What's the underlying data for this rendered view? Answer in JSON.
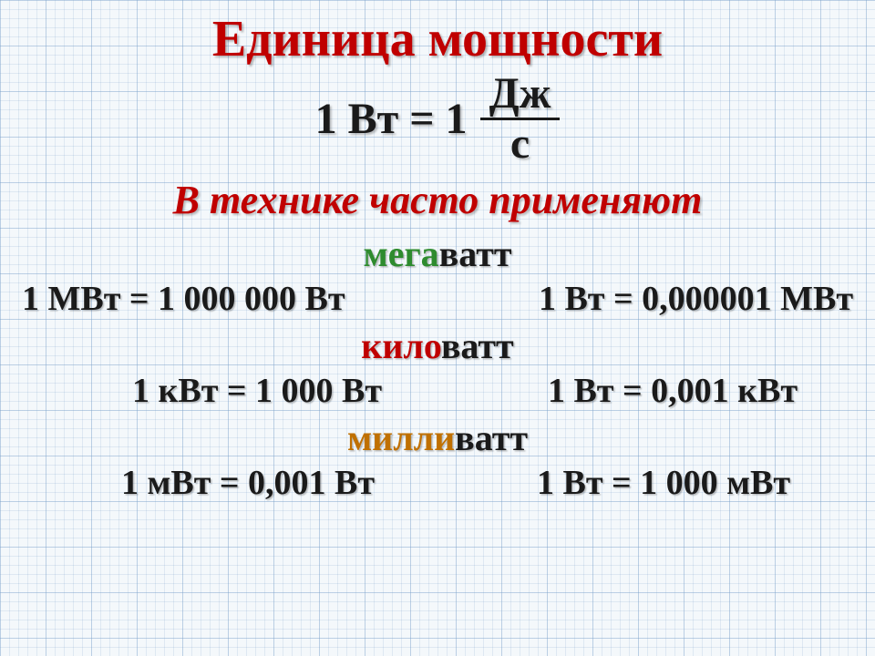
{
  "colors": {
    "title": "#c00000",
    "formula": "#1a1a1a",
    "subtitle": "#c00000",
    "mega_prefix": "#2e8b2e",
    "kilo_prefix": "#c00000",
    "milli_prefix": "#c07000",
    "body_text": "#1a1a1a"
  },
  "title": "Единица мощности",
  "formula": {
    "left": "1 Вт = 1",
    "numerator": "Дж",
    "denominator": "с"
  },
  "subtitle": "В технике часто применяют",
  "units": {
    "mega": {
      "prefix": "мега",
      "base": "ватт",
      "left": "1 МВт = 1 000 000 Вт",
      "right": "1 Вт = 0,000001 МВт"
    },
    "kilo": {
      "prefix": "кило",
      "base": "ватт",
      "left": "1 кВт = 1 000 Вт",
      "right": "1 Вт = 0,001 кВт"
    },
    "milli": {
      "prefix": "милли",
      "base": "ватт",
      "left": "1 мВт = 0,001 Вт",
      "right": "1 Вт = 1 000 мВт"
    }
  }
}
